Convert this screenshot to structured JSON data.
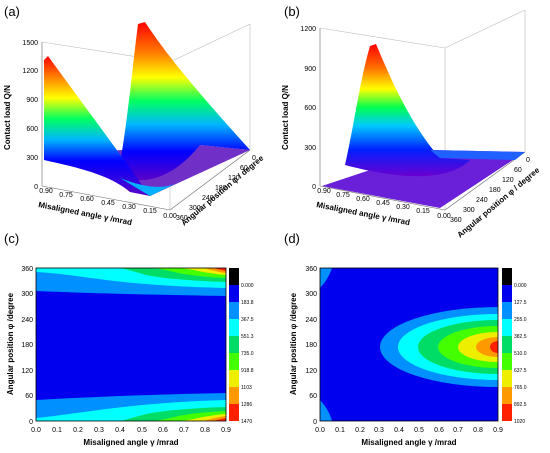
{
  "chart_data": [
    {
      "id": "a",
      "panel_label": "(a)",
      "type": "surface3d",
      "zlabel": "Contact load Q/N",
      "xlabel": "Misaligned angle γ /mrad",
      "ylabel": "Angular position φ / degree",
      "z_ticks": [
        "0",
        "300",
        "600",
        "900",
        "1200",
        "1500"
      ],
      "x_ticks": [
        "0.90",
        "0.75",
        "0.60",
        "0.45",
        "0.30",
        "0.15",
        "0.00"
      ],
      "y_ticks": [
        "360",
        "300",
        "240",
        "180",
        "120",
        "60",
        "0"
      ],
      "zlim": [
        0,
        1500
      ],
      "xlim": [
        0,
        0.9
      ],
      "ylim": [
        0,
        360
      ],
      "peak_value": 1470
    },
    {
      "id": "b",
      "panel_label": "(b)",
      "type": "surface3d",
      "zlabel": "Contact load Q/N",
      "xlabel": "Misaligned angle γ /mrad",
      "ylabel": "Angular position φ / degree",
      "z_ticks": [
        "0",
        "300",
        "600",
        "900",
        "1200"
      ],
      "x_ticks": [
        "0.90",
        "0.75",
        "0.60",
        "0.45",
        "0.30",
        "0.15",
        "0.00"
      ],
      "y_ticks": [
        "360",
        "300",
        "240",
        "180",
        "120",
        "60",
        "0"
      ],
      "zlim": [
        0,
        1200
      ],
      "xlim": [
        0,
        0.9
      ],
      "ylim": [
        0,
        360
      ],
      "peak_value": 1020
    },
    {
      "id": "c",
      "panel_label": "(c)",
      "type": "heatmap",
      "xlabel": "Misaligned angle γ /mrad",
      "ylabel": "Angular position φ /degree",
      "x_ticks": [
        "0.0",
        "0.1",
        "0.2",
        "0.3",
        "0.4",
        "0.5",
        "0.6",
        "0.7",
        "0.8",
        "0.9"
      ],
      "y_ticks": [
        "0",
        "60",
        "120",
        "180",
        "240",
        "300",
        "360"
      ],
      "xlim": [
        0,
        0.9
      ],
      "ylim": [
        0,
        360
      ],
      "levels": [
        "0.000",
        "183.8",
        "367.5",
        "551.3",
        "735.0",
        "918.8",
        "1103",
        "1286",
        "1470"
      ],
      "level_colors": [
        "#000000",
        "#0000ee",
        "#0090ff",
        "#00ffff",
        "#00dd66",
        "#44ff00",
        "#eeee00",
        "#ff9900",
        "#ff2000"
      ]
    },
    {
      "id": "d",
      "panel_label": "(d)",
      "type": "heatmap",
      "xlabel": "Misaligned angle γ /mrad",
      "ylabel": "Angular position φ /degree",
      "x_ticks": [
        "0.0",
        "0.1",
        "0.2",
        "0.3",
        "0.4",
        "0.5",
        "0.6",
        "0.7",
        "0.8",
        "0.9"
      ],
      "y_ticks": [
        "0",
        "60",
        "120",
        "180",
        "240",
        "300",
        "360"
      ],
      "xlim": [
        0,
        0.9
      ],
      "ylim": [
        0,
        360
      ],
      "levels": [
        "0.000",
        "127.5",
        "255.0",
        "382.5",
        "510.0",
        "637.5",
        "765.0",
        "892.5",
        "1020"
      ],
      "level_colors": [
        "#000000",
        "#0000ee",
        "#0090ff",
        "#00ffff",
        "#00dd66",
        "#44ff00",
        "#eeee00",
        "#ff9900",
        "#ff2000"
      ]
    }
  ]
}
